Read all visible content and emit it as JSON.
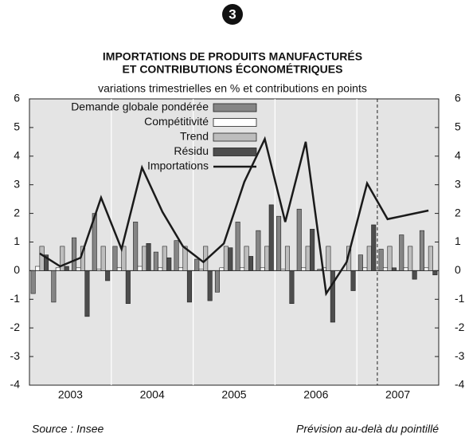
{
  "chart_data": {
    "type": "bar",
    "badge": "3",
    "title": "IMPORTATIONS DE PRODUITS MANUFACTURÉS",
    "title2": "ET CONTRIBUTIONS ÉCONOMÉTRIQUES",
    "subtitle": "variations trimestrielles en % et contributions en points",
    "source": "Source : Insee",
    "note": "Prévision au-delà du pointillé",
    "years": [
      "2003",
      "2004",
      "2005",
      "2006",
      "2007"
    ],
    "categories": [
      null,
      null,
      null,
      null,
      null,
      null,
      null,
      null,
      null,
      null,
      null,
      null,
      null,
      null,
      null,
      null,
      null,
      null,
      null,
      null
    ],
    "forecast_start": 17,
    "ylim": [
      -4,
      6
    ],
    "yticks": [
      6,
      5,
      4,
      3,
      2,
      1,
      0,
      -1,
      -2,
      -3,
      -4
    ],
    "series": [
      {
        "name": "Demande globale pondérée",
        "color": "#858585",
        "values": [
          -0.8,
          -1.1,
          1.15,
          2.0,
          0.85,
          1.7,
          0.65,
          1.05,
          0.4,
          -0.75,
          1.7,
          1.4,
          1.9,
          2.15,
          0.05,
          0,
          0.55,
          0.75,
          1.25,
          1.4
        ]
      },
      {
        "name": "Compétitivité",
        "color": "#ffffff",
        "values": [
          0.15,
          0.1,
          0.1,
          0.05,
          0.1,
          0.15,
          0.1,
          0.1,
          0.05,
          0.1,
          0.1,
          0.1,
          0.05,
          0.1,
          0.1,
          0,
          0.1,
          0.1,
          0.1,
          0.1
        ]
      },
      {
        "name": "Trend",
        "color": "#bdbdbd",
        "values": [
          0.85,
          0.85,
          0.85,
          0.85,
          0.85,
          0.85,
          0.85,
          0.85,
          0.85,
          0.85,
          0.85,
          0.85,
          0.85,
          0.85,
          0.85,
          0.85,
          0.85,
          0.85,
          0.85,
          0.85
        ]
      },
      {
        "name": "Résidu",
        "color": "#4d4d4d",
        "values": [
          0.55,
          0.15,
          -1.6,
          -0.35,
          -1.15,
          0.95,
          0.45,
          -1.1,
          -1.05,
          0.8,
          0.5,
          2.3,
          -1.15,
          1.45,
          -1.8,
          -0.7,
          1.6,
          0.1,
          -0.3,
          -0.15
        ]
      },
      {
        "name": "Importations",
        "type": "line",
        "color": "#1a1a1a",
        "values": [
          0.6,
          0.15,
          0.45,
          2.55,
          0.75,
          3.6,
          2.05,
          0.85,
          0.3,
          0.95,
          3.1,
          4.6,
          1.7,
          4.5,
          -0.8,
          0.3,
          3.05,
          1.8,
          1.95,
          2.1
        ]
      }
    ]
  }
}
